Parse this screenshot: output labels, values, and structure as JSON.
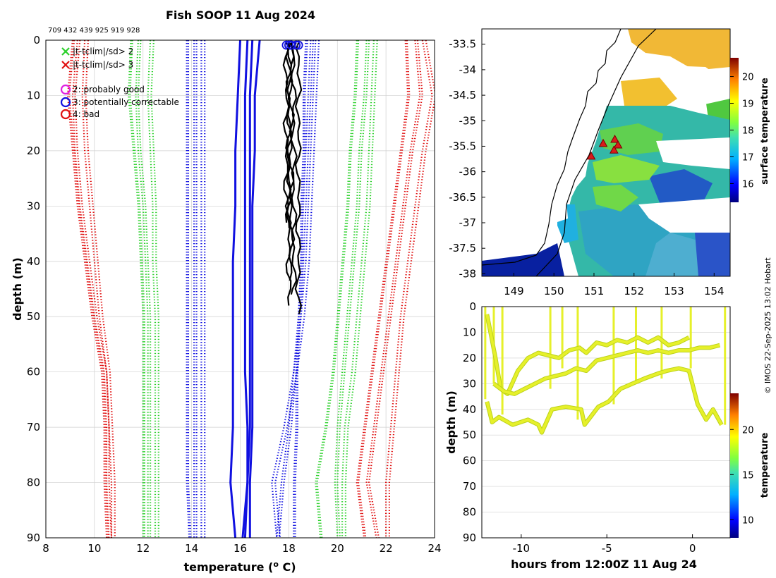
{
  "title": "Fish SOOP 11 Aug 2024",
  "ids_line": "709 432 439 925 919 928",
  "credit": "© IMOS 22-Sep-2025 13:02 Hobart",
  "colors": {
    "axis": "#000000",
    "grid": "#d0d0d0",
    "green": "#2bd02b",
    "blue": "#1010e0",
    "red": "#e01010",
    "magenta": "#e020e0",
    "profile": "#000000",
    "land": "#ffffff",
    "marker": "#d81b1b",
    "trace": "#e6f02a",
    "trace_edge": "#bcd21a"
  },
  "chart_data": [
    {
      "type": "line",
      "id": "profile",
      "title": "Fish SOOP 11 Aug 2024",
      "xlabel": "temperature (",
      "xlabel_sup": "o",
      "xlabel_tail": " C)",
      "ylabel": "depth (m)",
      "xlim": [
        8,
        24
      ],
      "ylim": [
        0,
        90
      ],
      "y_reversed": true,
      "grid": true,
      "xticks": [
        8,
        10,
        12,
        14,
        16,
        18,
        20,
        22,
        24
      ],
      "yticks": [
        0,
        10,
        20,
        30,
        40,
        50,
        60,
        70,
        80,
        90
      ],
      "legend": {
        "location": "top-left",
        "entries": [
          {
            "label": "|t-tclim|/sd> 2",
            "marker": "x",
            "color": "green"
          },
          {
            "label": "|t-tclim|/sd> 3",
            "marker": "x",
            "color": "red"
          },
          {
            "label": "2: probably good",
            "marker": "o",
            "color": "magenta"
          },
          {
            "label": "3: potentially correctable",
            "marker": "o",
            "color": "blue"
          },
          {
            "label": "4: bad",
            "marker": "o",
            "color": "red"
          }
        ]
      },
      "climatology_depths": [
        0,
        10,
        20,
        30,
        40,
        50,
        60,
        70,
        80,
        90
      ],
      "climatology": [
        {
          "name": "red low (−3 sd)",
          "color": "red",
          "style": "dotted",
          "lines": [
            [
              9.1,
              8.9,
              9.1,
              9.3,
              9.6,
              9.9,
              10.3,
              10.4,
              10.4,
              10.5
            ],
            [
              9.3,
              9.1,
              9.2,
              9.4,
              9.7,
              10.0,
              10.4,
              10.5,
              10.5,
              10.6
            ],
            [
              9.6,
              9.5,
              9.6,
              9.8,
              10.0,
              10.2,
              10.5,
              10.6,
              10.7,
              10.7
            ]
          ]
        },
        {
          "name": "green low (−2 sd)",
          "color": "green",
          "style": "dotted",
          "lines": [
            [
              11.5,
              11.4,
              11.6,
              11.8,
              11.9,
              12.0,
              12.0,
              12.0,
              12.0,
              12.0
            ],
            [
              11.8,
              11.7,
              11.8,
              12.0,
              12.1,
              12.2,
              12.2,
              12.2,
              12.2,
              12.2
            ],
            [
              12.3,
              12.2,
              12.3,
              12.4,
              12.4,
              12.5,
              12.5,
              12.5,
              12.5,
              12.5
            ]
          ]
        },
        {
          "name": "blue low (−1 sd)",
          "color": "blue",
          "style": "dotted",
          "lines": [
            [
              13.8,
              13.8,
              13.8,
              13.8,
              13.8,
              13.8,
              13.8,
              13.8,
              13.8,
              13.9
            ],
            [
              14.1,
              14.1,
              14.1,
              14.1,
              14.1,
              14.1,
              14.1,
              14.1,
              14.1,
              14.1
            ],
            [
              14.4,
              14.4,
              14.4,
              14.4,
              14.4,
              14.4,
              14.4,
              14.4,
              14.4,
              14.4
            ]
          ]
        },
        {
          "name": "climatology mean",
          "color": "blue",
          "style": "solid",
          "lines": [
            [
              16.0,
              15.9,
              15.8,
              15.8,
              15.7,
              15.7,
              15.7,
              15.7,
              15.6,
              15.8
            ],
            [
              16.3,
              16.2,
              16.2,
              16.2,
              16.2,
              16.2,
              16.2,
              16.3,
              16.3,
              16.1
            ],
            [
              16.5,
              16.4,
              16.4,
              16.4,
              16.4,
              16.4,
              16.4,
              16.4,
              16.3,
              16.2
            ],
            [
              16.8,
              16.6,
              16.6,
              16.5,
              16.5,
              16.5,
              16.5,
              16.5,
              16.4,
              16.4
            ]
          ]
        },
        {
          "name": "blue high (+1 sd)",
          "color": "blue",
          "style": "dotted",
          "lines": [
            [
              18.7,
              18.6,
              18.6,
              18.5,
              18.5,
              18.4,
              18.3,
              18.3,
              18.2,
              18.2
            ],
            [
              18.9,
              18.8,
              18.7,
              18.6,
              18.5,
              18.4,
              18.2,
              18.0,
              17.7,
              17.5
            ],
            [
              19.1,
              19.0,
              18.9,
              18.8,
              18.7,
              18.5,
              18.2,
              17.8,
              17.3,
              17.5
            ]
          ]
        },
        {
          "name": "green high (+2 sd)",
          "color": "green",
          "style": "dotted",
          "lines": [
            [
              20.8,
              20.7,
              20.5,
              20.4,
              20.2,
              20.0,
              19.8,
              19.5,
              19.1,
              19.3
            ],
            [
              21.2,
              21.1,
              20.9,
              20.8,
              20.6,
              20.4,
              20.2,
              20.0,
              19.9,
              20.0
            ],
            [
              21.5,
              21.4,
              21.3,
              21.2,
              21.0,
              20.8,
              20.6,
              20.3,
              20.2,
              20.2
            ]
          ]
        },
        {
          "name": "red high (+3 sd)",
          "color": "red",
          "style": "dotted",
          "lines": [
            [
              22.8,
              22.9,
              22.6,
              22.3,
              22.0,
              21.7,
              21.4,
              21.1,
              20.8,
              21.1
            ],
            [
              23.2,
              23.4,
              23.0,
              22.7,
              22.4,
              22.1,
              21.8,
              21.5,
              21.2,
              21.6
            ],
            [
              23.5,
              23.9,
              23.5,
              23.2,
              22.9,
              22.6,
              22.4,
              22.2,
              22.0,
              22.0
            ]
          ]
        }
      ],
      "profiles": [
        {
          "top_temp": 17.9,
          "max_depth": 33,
          "mean_temp": 17.9
        },
        {
          "top_temp": 18.0,
          "max_depth": 34,
          "mean_temp": 18.0
        },
        {
          "top_temp": 18.1,
          "max_depth": 48,
          "mean_temp": 18.0
        },
        {
          "top_temp": 18.3,
          "max_depth": 46,
          "mean_temp": 18.2
        },
        {
          "top_temp": 18.4,
          "max_depth": 50,
          "mean_temp": 18.4
        },
        {
          "top_temp": 18.1,
          "max_depth": 44,
          "mean_temp": 18.1
        }
      ]
    },
    {
      "type": "heatmap",
      "id": "map",
      "xlim": [
        148.2,
        154.4
      ],
      "ylim": [
        -38.05,
        -33.2
      ],
      "xticks": [
        149,
        150,
        151,
        152,
        153,
        154
      ],
      "yticks": [
        -33.5,
        -34,
        -34.5,
        -35,
        -35.5,
        -36,
        -36.5,
        -37,
        -37.5,
        -38
      ],
      "colorbar": {
        "label": "surface temperature",
        "range": [
          15.3,
          20.7
        ],
        "ticks": [
          16,
          17,
          18,
          19,
          20
        ]
      },
      "stations": [
        [
          150.93,
          -35.7
        ],
        [
          151.23,
          -35.45
        ],
        [
          151.52,
          -35.37
        ],
        [
          151.6,
          -35.48
        ],
        [
          151.5,
          -35.58
        ]
      ]
    },
    {
      "type": "scatter",
      "id": "timeseries",
      "xlabel": "hours from 12:00Z 11 Aug 24",
      "ylabel": "depth (m)",
      "xlim": [
        -12.3,
        2.2
      ],
      "ylim": [
        0,
        90
      ],
      "y_reversed": true,
      "xticks": [
        -10,
        -5,
        0
      ],
      "yticks": [
        0,
        10,
        20,
        30,
        40,
        50,
        60,
        70,
        80,
        90
      ],
      "colorbar": {
        "label": "temperature",
        "range": [
          8,
          24
        ],
        "ticks": [
          10,
          15,
          20
        ]
      },
      "traces": [
        {
          "x": [
            -12,
            -11.7,
            -11.3,
            -10.5,
            -9.6,
            -9.0,
            -8.8,
            -8.2,
            -7.4,
            -6.5,
            -6.3,
            -5.5,
            -4.9,
            -4.2,
            -3.5,
            -2.8,
            -2.0,
            -1.5,
            -0.8,
            -0.2,
            0.3,
            0.8,
            1.2,
            1.7
          ],
          "y": [
            37,
            45,
            43,
            46,
            44,
            46,
            49,
            40,
            39,
            40,
            46,
            39,
            37,
            32,
            30,
            28,
            26,
            25,
            24,
            25,
            38,
            44,
            40,
            46
          ]
        },
        {
          "x": [
            -12,
            -11.5,
            -11.2,
            -10.8,
            -10.2,
            -9.6,
            -9.0,
            -8.4,
            -7.8,
            -7.2,
            -6.6,
            -6.2,
            -5.6,
            -5.0,
            -4.4,
            -3.8,
            -3.2,
            -2.6,
            -2.0,
            -1.4,
            -0.8,
            -0.2
          ],
          "y": [
            3,
            20,
            32,
            34,
            25,
            20,
            18,
            19,
            20,
            17,
            16,
            18,
            14,
            15,
            13,
            14,
            12,
            14,
            12,
            15,
            14,
            12
          ]
        },
        {
          "x": [
            -11.6,
            -11.0,
            -10.4,
            -9.8,
            -9.2,
            -8.6,
            -8.0,
            -7.4,
            -6.8,
            -6.2,
            -5.6,
            -5.0,
            -4.4,
            -3.8,
            -3.2,
            -2.6,
            -2.0,
            -1.4,
            -0.8,
            -0.2,
            0.4,
            1.0,
            1.6
          ],
          "y": [
            30,
            33,
            34,
            32,
            30,
            28,
            27,
            26,
            24,
            25,
            21,
            20,
            19,
            18,
            17,
            18,
            17,
            18,
            17,
            17,
            16,
            16,
            15
          ]
        }
      ]
    }
  ]
}
